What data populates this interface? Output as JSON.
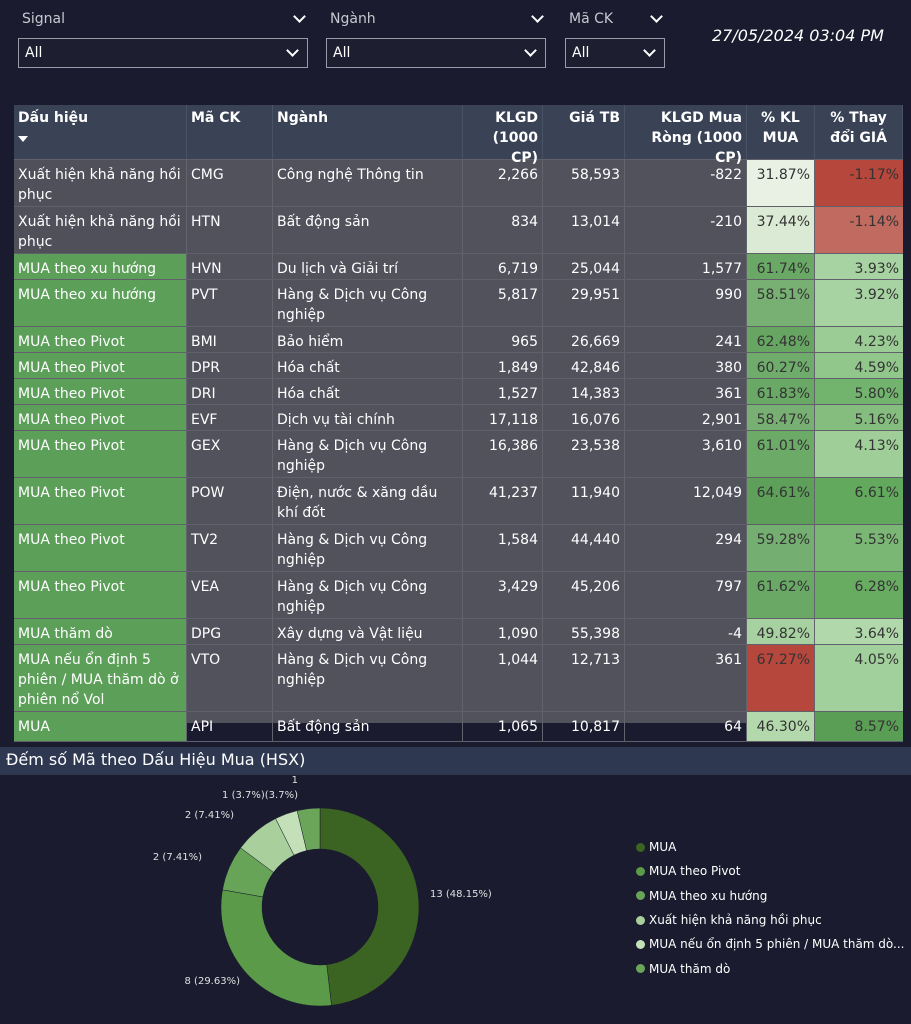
{
  "filters": [
    {
      "label": "Signal",
      "value": "All"
    },
    {
      "label": "Ngành",
      "value": "All"
    },
    {
      "label": "Mã CK",
      "value": "All"
    }
  ],
  "datetime": "27/05/2024 03:04 PM",
  "table": {
    "headers": [
      "Dấu hiệu",
      "Mã CK",
      "Ngành",
      "KLGD (1000 CP)",
      "Giá TB",
      "KLGD Mua Ròng (1000 CP)",
      "% KL MUA",
      "% Thay đổi GIÁ"
    ],
    "rows": [
      {
        "cells": [
          "Xuất hiện khả năng hồi phục",
          "CMG",
          "Công nghệ Thông tin",
          "2,266",
          "58,593",
          "-822",
          "31.87%",
          "-1.17%"
        ],
        "sig": "#4f505a",
        "kl": "#e8f1e4",
        "pct": "#b5473c"
      },
      {
        "cells": [
          "Xuất hiện khả năng hồi phục",
          "HTN",
          "Bất động sản",
          "834",
          "13,014",
          "-210",
          "37.44%",
          "-1.14%"
        ],
        "sig": "#4f505a",
        "kl": "#dbead4",
        "pct": "#c06a60"
      },
      {
        "cells": [
          "MUA theo xu hướng",
          "HVN",
          "Du lịch và Giải trí",
          "6,719",
          "25,044",
          "1,577",
          "61.74%",
          "3.93%"
        ],
        "sig": "#5c9f59",
        "kl": "#6aa866",
        "pct": "#a7d3a2"
      },
      {
        "cells": [
          "MUA theo xu hướng",
          "PVT",
          "Hàng & Dịch vụ Công nghiệp",
          "5,817",
          "29,951",
          "990",
          "58.51%",
          "3.92%"
        ],
        "sig": "#5c9f59",
        "kl": "#78b073",
        "pct": "#a7d3a2"
      },
      {
        "cells": [
          "MUA theo Pivot",
          "BMI",
          "Bảo hiểm",
          "965",
          "26,669",
          "241",
          "62.48%",
          "4.23%"
        ],
        "sig": "#5c9f59",
        "kl": "#66a562",
        "pct": "#9ccc96"
      },
      {
        "cells": [
          "MUA theo Pivot",
          "DPR",
          "Hóa chất",
          "1,849",
          "42,846",
          "380",
          "60.27%",
          "4.59%"
        ],
        "sig": "#5c9f59",
        "kl": "#6fab6b",
        "pct": "#92c78c"
      },
      {
        "cells": [
          "MUA theo Pivot",
          "DRI",
          "Hóa chất",
          "1,527",
          "14,383",
          "361",
          "61.83%",
          "5.80%"
        ],
        "sig": "#5c9f59",
        "kl": "#69a865",
        "pct": "#72b36d"
      },
      {
        "cells": [
          "MUA theo Pivot",
          "EVF",
          "Dịch vụ tài chính",
          "17,118",
          "16,076",
          "2,901",
          "58.47%",
          "5.16%"
        ],
        "sig": "#5c9f59",
        "kl": "#78b073",
        "pct": "#84bd7e"
      },
      {
        "cells": [
          "MUA theo Pivot",
          "GEX",
          "Hàng & Dịch vụ Công nghiệp",
          "16,386",
          "23,538",
          "3,610",
          "61.01%",
          "4.13%"
        ],
        "sig": "#5c9f59",
        "kl": "#6caa68",
        "pct": "#9fce99"
      },
      {
        "cells": [
          "MUA theo Pivot",
          "POW",
          "Điện, nước & xăng dầu khí đốt",
          "41,237",
          "11,940",
          "12,049",
          "64.61%",
          "6.61%"
        ],
        "sig": "#5c9f59",
        "kl": "#5e9f5a",
        "pct": "#62a85d"
      },
      {
        "cells": [
          "MUA theo Pivot",
          "TV2",
          "Hàng & Dịch vụ Công nghiệp",
          "1,584",
          "44,440",
          "294",
          "59.28%",
          "5.53%"
        ],
        "sig": "#5c9f59",
        "kl": "#74ae70",
        "pct": "#7ab774"
      },
      {
        "cells": [
          "MUA theo Pivot",
          "VEA",
          "Hàng & Dịch vụ Công nghiệp",
          "3,429",
          "45,206",
          "797",
          "61.62%",
          "6.28%"
        ],
        "sig": "#5c9f59",
        "kl": "#6aa866",
        "pct": "#68ac62"
      },
      {
        "cells": [
          "MUA thăm dò",
          "DPG",
          "Xây dựng và Vật liệu",
          "1,090",
          "55,398",
          "-4",
          "49.82%",
          "3.64%"
        ],
        "sig": "#5c9f59",
        "kl": "#a7d1a0",
        "pct": "#b0d8ab"
      },
      {
        "cells": [
          "MUA nếu ổn định 5 phiên / MUA thăm dò ở phiên nổ Vol",
          "VTO",
          "Hàng & Dịch vụ Công nghiệp",
          "1,044",
          "12,713",
          "361",
          "67.27%",
          "4.05%"
        ],
        "sig": "#5c9f59",
        "kl": "#b5473c",
        "pct": "#a2d09c"
      },
      {
        "cells": [
          "MUA",
          "API",
          "Bất động sản",
          "1,065",
          "10,817",
          "64",
          "46.30%",
          "8.57%"
        ],
        "sig": "#5c9f59",
        "kl": "#b3d8ac",
        "pct": "#5a9e55"
      }
    ]
  },
  "chart_data": {
    "type": "pie",
    "title": "Đếm số Mã theo Dấu Hiệu Mua (HSX)",
    "donut": true,
    "slices": [
      {
        "name": "MUA",
        "value": 13,
        "label": "13 (48.15%)",
        "color": "#3b6321"
      },
      {
        "name": "MUA theo Pivot",
        "value": 8,
        "label": "8 (29.63%)",
        "color": "#5a9a48"
      },
      {
        "name": "MUA theo xu hướng",
        "value": 2,
        "label": "2 (7.41%)",
        "color": "#68a458"
      },
      {
        "name": "Xuất hiện khả năng hồi phục",
        "value": 2,
        "label": "2 (7.41%)",
        "color": "#a9cf9c"
      },
      {
        "name": "MUA nếu ổn định 5 phiên / MUA thăm dò...",
        "value": 1,
        "label": "1 (3.7%)(3.7%)",
        "color": "#c4e0b8"
      },
      {
        "name": "MUA thăm dò",
        "value": 1,
        "label": "1",
        "color": "#6aa55a"
      }
    ],
    "legend_position": "right"
  }
}
